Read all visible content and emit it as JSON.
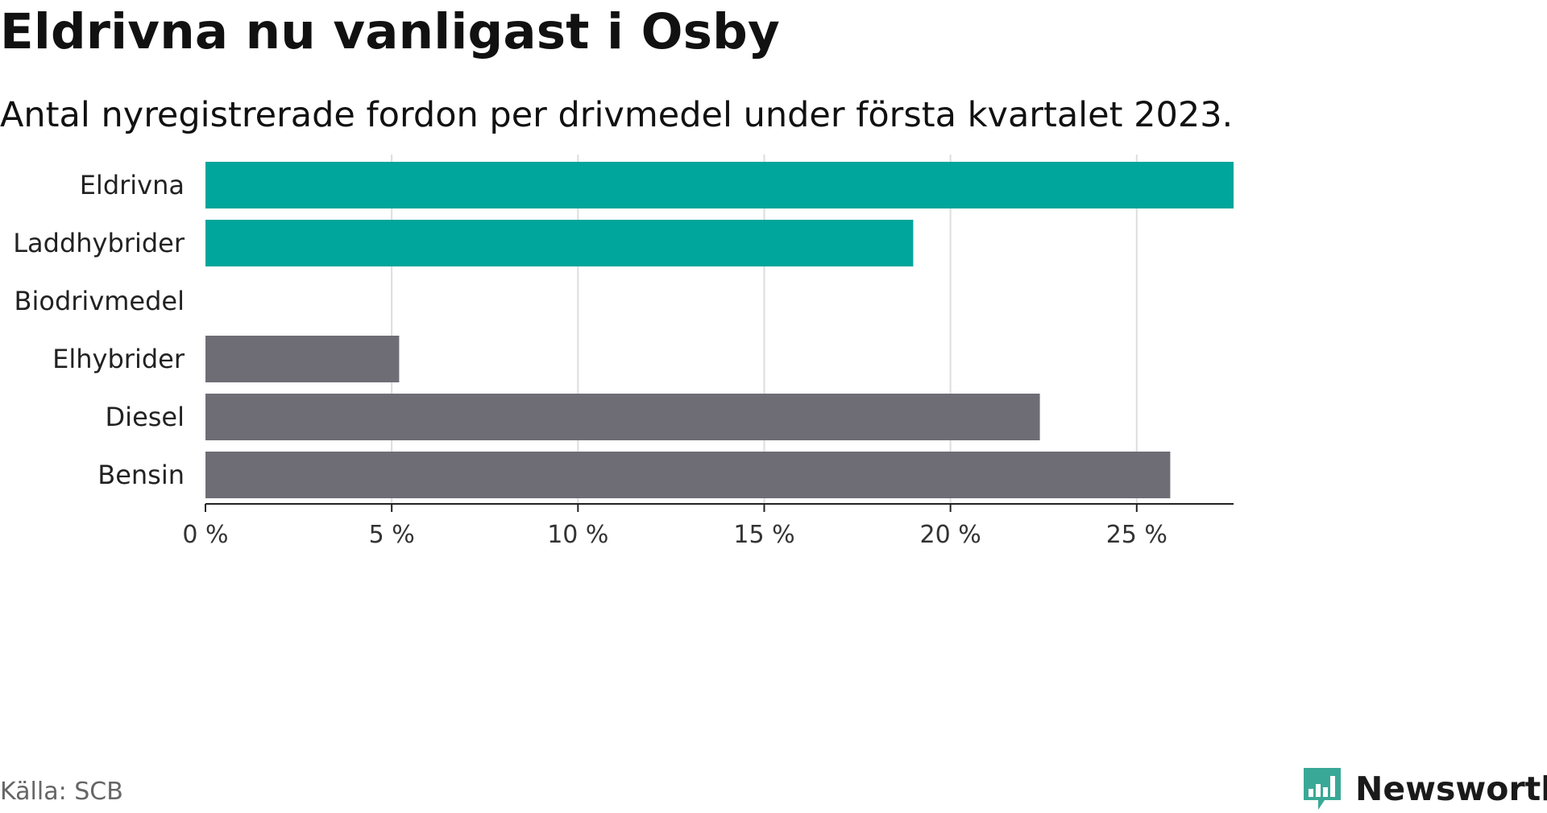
{
  "header": {
    "title": "Eldrivna nu vanligast i Osby",
    "subtitle": "Antal nyregistrerade fordon per drivmedel under första kvartalet 2023."
  },
  "footer": {
    "source": "Källa: SCB",
    "brand": "Newsworthy"
  },
  "colors": {
    "highlight": "#00a59b",
    "other": "#6e6d76",
    "grid": "#dddddd",
    "axis": "#222222",
    "brand": "#3aa897"
  },
  "chart_data": {
    "type": "bar",
    "orientation": "horizontal",
    "categories": [
      "Eldrivna",
      "Laddhybrider",
      "Biodrivmedel",
      "Elhybrider",
      "Diesel",
      "Bensin"
    ],
    "values": [
      27.6,
      19.0,
      0,
      5.2,
      22.4,
      25.9
    ],
    "highlighted": [
      true,
      true,
      true,
      false,
      false,
      false
    ],
    "xlim": [
      0,
      27.6
    ],
    "xticks": [
      0,
      5,
      10,
      15,
      20,
      25
    ],
    "xtick_labels": [
      "0 %",
      "5 %",
      "10 %",
      "15 %",
      "20 %",
      "25 %"
    ],
    "grid": true
  }
}
